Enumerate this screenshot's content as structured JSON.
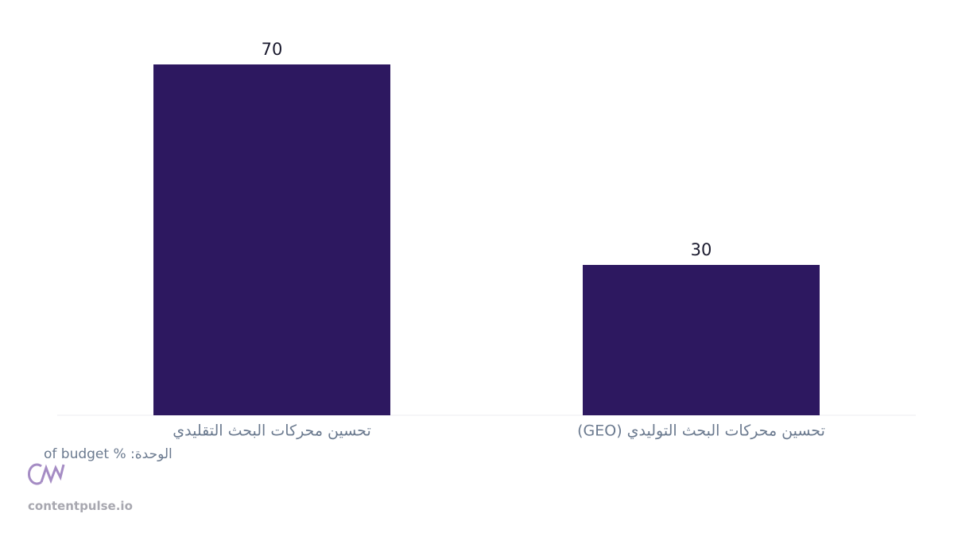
{
  "chart_data": {
    "type": "bar",
    "categories": [
      "تحسين محركات البحث التقليدي",
      "تحسين محركات البحث التوليدي (GEO)"
    ],
    "values": [
      70,
      30
    ],
    "color": "#2d1860",
    "unit_note": "الوحدة: % of budget",
    "source": "contentpulse.io"
  }
}
